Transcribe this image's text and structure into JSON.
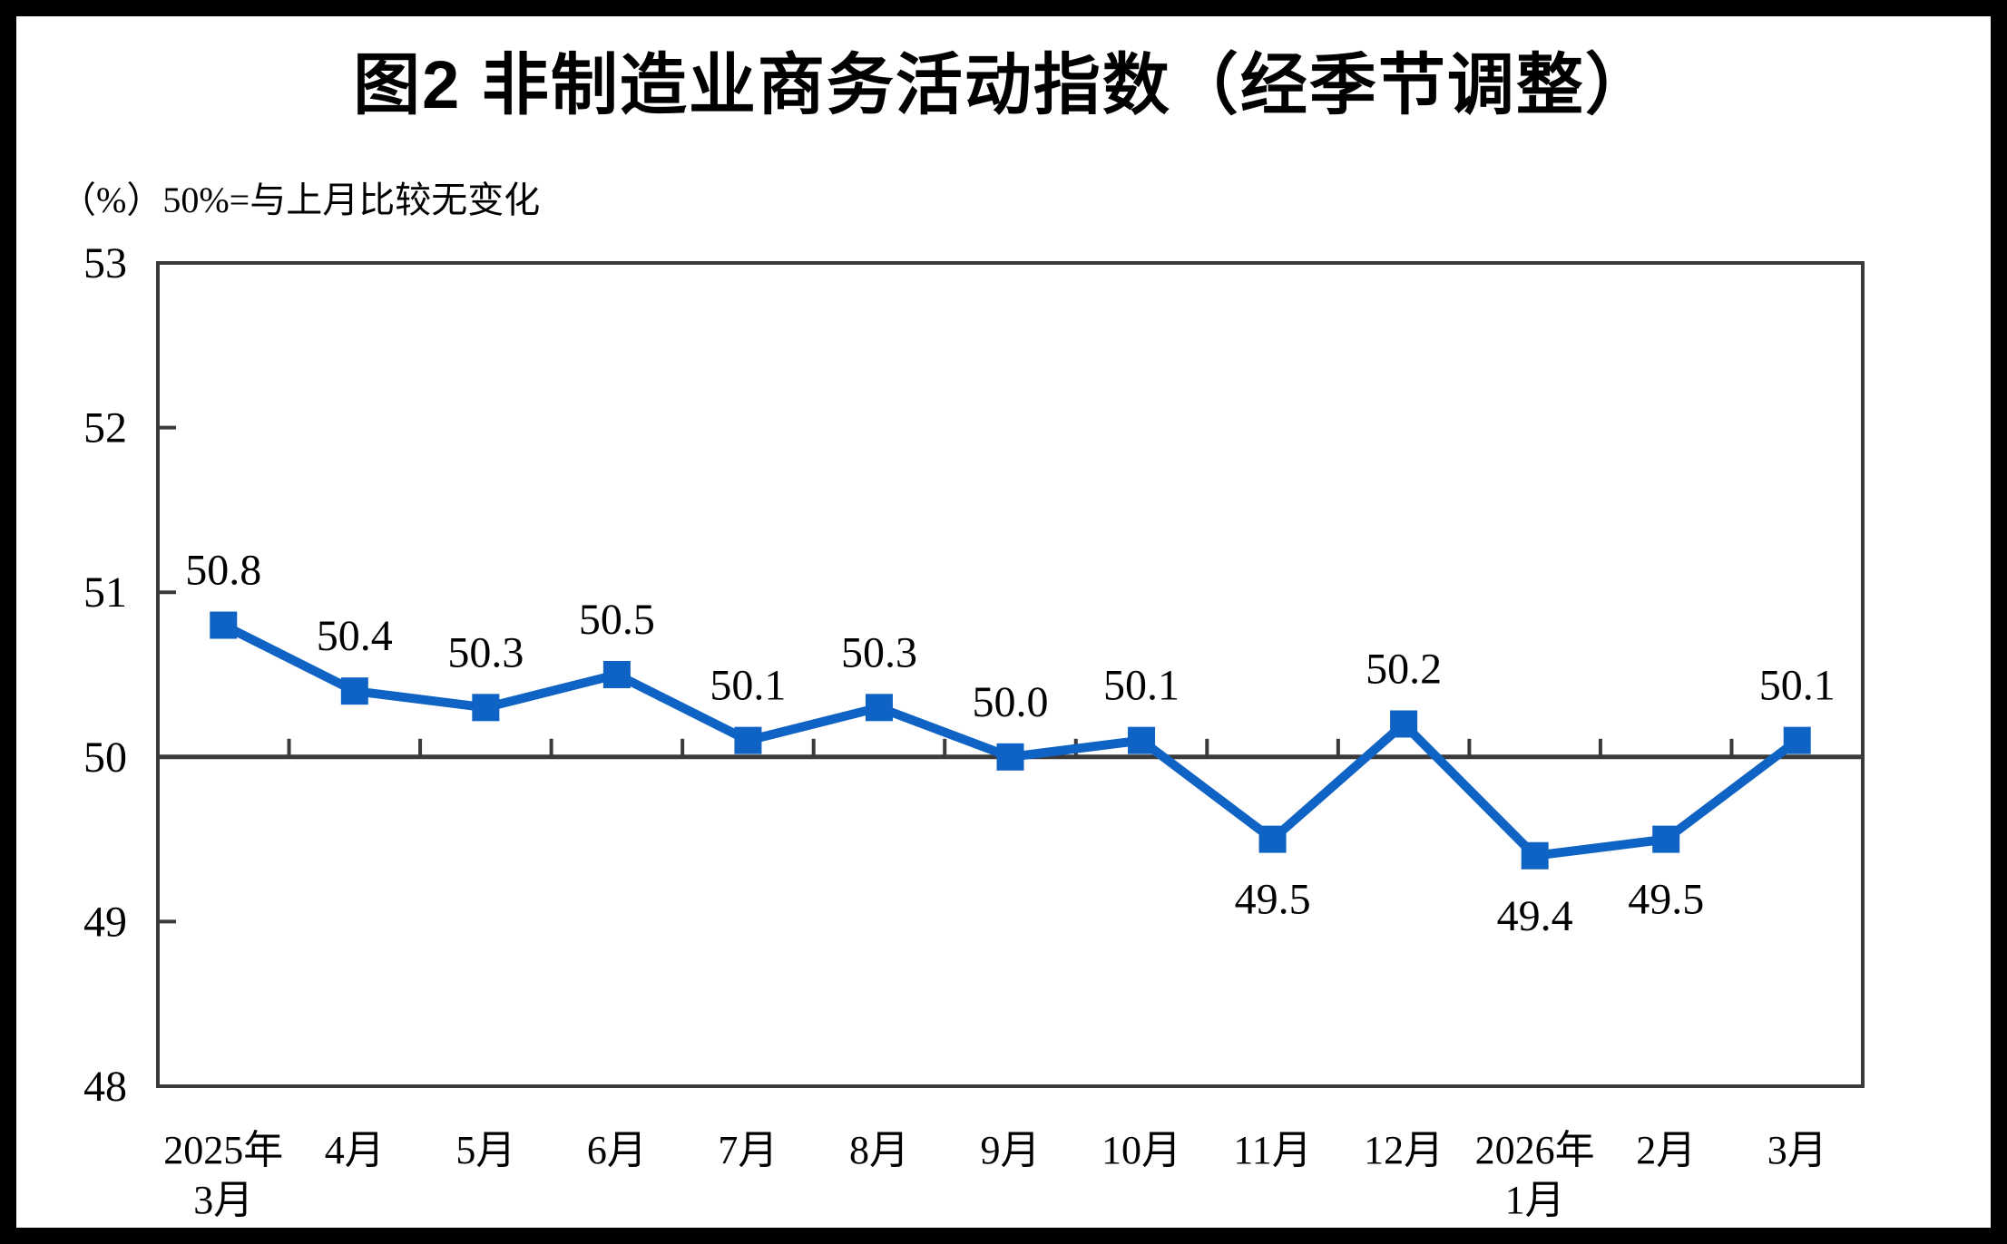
{
  "page": {
    "title": "图2 非制造业商务活动指数（经季节调整）",
    "unit_note": "（%）50%=与上月比较无变化"
  },
  "chart_data": {
    "type": "line",
    "title": "图2 非制造业商务活动指数（经季节调整）",
    "unit_note": "（%）50%=与上月比较无变化",
    "categories": [
      "2025年\n3月",
      "4月",
      "5月",
      "6月",
      "7月",
      "8月",
      "9月",
      "10月",
      "11月",
      "12月",
      "2026年\n1月",
      "2月",
      "3月"
    ],
    "series": [
      {
        "name": "非制造业商务活动指数（经季节调整）",
        "values": [
          50.8,
          50.4,
          50.3,
          50.5,
          50.1,
          50.3,
          50.0,
          50.1,
          49.5,
          50.2,
          49.4,
          49.5,
          50.1
        ],
        "labels": [
          "50.8",
          "50.4",
          "50.3",
          "50.5",
          "50.1",
          "50.3",
          "50.0",
          "50.1",
          "49.5",
          "50.2",
          "49.4",
          "49.5",
          "50.1"
        ]
      }
    ],
    "ylim": [
      48,
      53
    ],
    "ytick_step": 1,
    "ytick_labels": [
      "48",
      "49",
      "50",
      "51",
      "52",
      "53"
    ],
    "reference_value": 50,
    "grid": false,
    "legend_position": "none",
    "marker": "square",
    "colors": {
      "line": "#0F63C4",
      "axis": "#3A3A3A",
      "reference_line": "#3A3A3A",
      "text": "#000000",
      "background": "#FFFFFF",
      "frame": "#000000"
    }
  }
}
